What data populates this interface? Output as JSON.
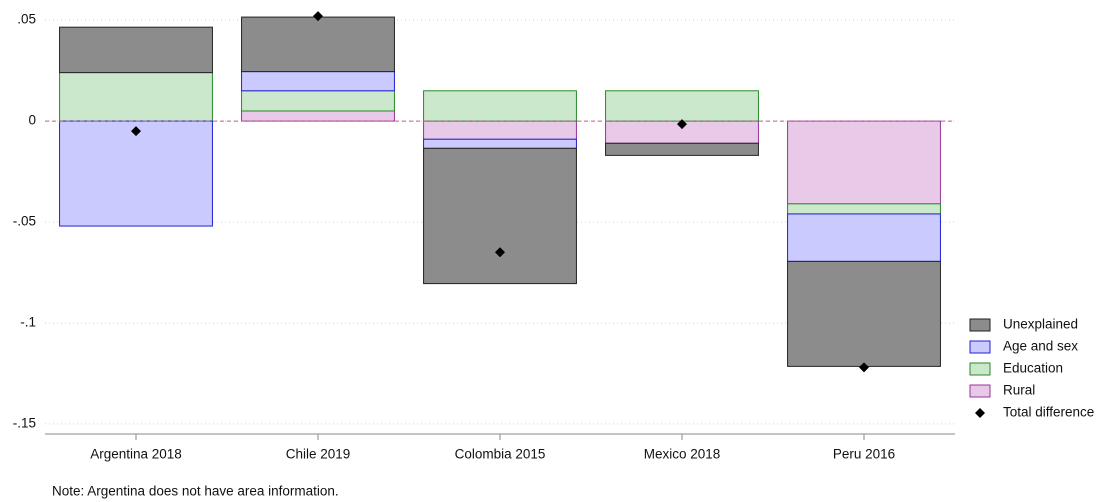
{
  "chart_data": {
    "type": "stacked_bar",
    "categories": [
      "Argentina 2018",
      "Chile 2019",
      "Colombia 2015",
      "Mexico 2018",
      "Peru 2016"
    ],
    "series": [
      {
        "name": "Rural",
        "color": "#e8c9e8",
        "stroke": "#993399",
        "values": [
          0,
          0.005,
          -0.009,
          -0.011,
          -0.041
        ]
      },
      {
        "name": "Education",
        "color": "#cce8cc",
        "stroke": "#2a8a2a",
        "values": [
          0.024,
          0.01,
          0.015,
          0.015,
          -0.005
        ]
      },
      {
        "name": "Age and sex",
        "color": "#cacaff",
        "stroke": "#2222cc",
        "values": [
          -0.052,
          0.0095,
          -0.0045,
          0,
          -0.0235
        ]
      },
      {
        "name": "Unexplained",
        "color": "#8c8c8c",
        "stroke": "#222222",
        "values": [
          0.0225,
          0.027,
          -0.067,
          -0.006,
          -0.052
        ]
      }
    ],
    "total": {
      "name": "Total difference",
      "color": "#000000",
      "values": [
        -0.005,
        0.052,
        -0.065,
        -0.0015,
        -0.122
      ]
    },
    "ylim": [
      -0.154,
      0.056
    ],
    "yticks": [
      {
        "value": 0.05,
        "label": ".05"
      },
      0,
      {
        "value": -0.05,
        "label": "-.05"
      },
      {
        "value": -0.1,
        "label": "-.1"
      },
      {
        "value": -0.15,
        "label": "-.15"
      }
    ],
    "grid": true,
    "zero_line_color": "#c0608a",
    "legend_position": "right",
    "note": "Note: Argentina does not have area information."
  }
}
